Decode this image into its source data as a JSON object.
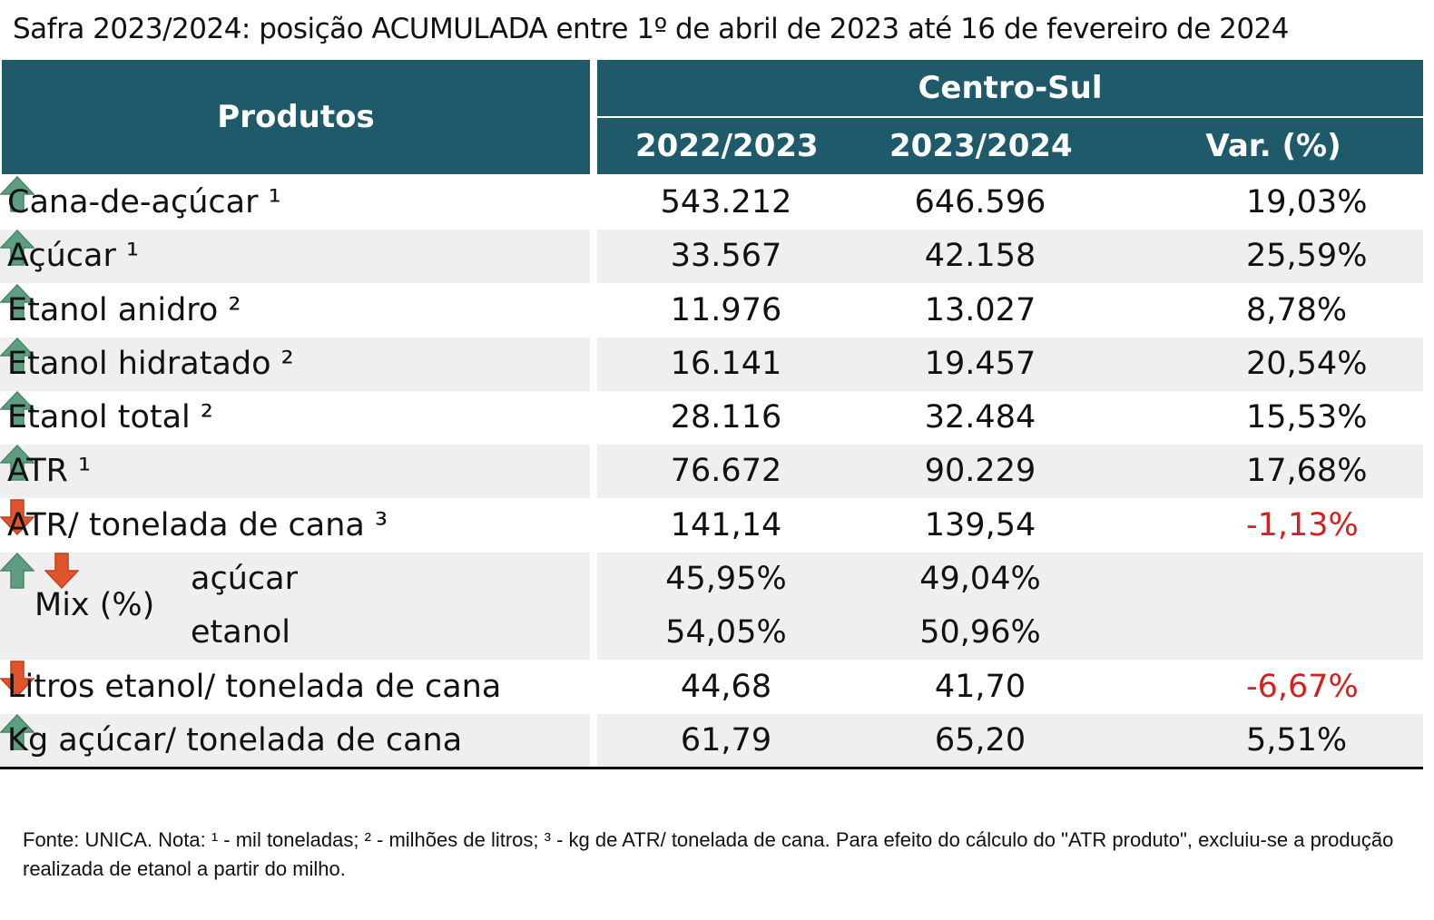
{
  "title": "Safra 2023/2024: posição ACUMULADA entre 1º de abril de 2023 até 16 de fevereiro de 2024",
  "table": {
    "header": {
      "products": "Produtos",
      "region": "Centro-Sul",
      "columns": [
        "2022/2023",
        "2023/2024",
        "Var. (%)"
      ]
    },
    "rows": [
      [
        "Cana-de-açúcar ¹",
        "543.212",
        "646.596",
        "19,03%"
      ],
      [
        "Açúcar ¹",
        "33.567",
        "42.158",
        "25,59%"
      ],
      [
        "Etanol anidro ²",
        "11.976",
        "13.027",
        "8,78%"
      ],
      [
        "Etanol hidratado ²",
        "16.141",
        "19.457",
        "20,54%"
      ],
      [
        "Etanol total ²",
        "28.116",
        "32.484",
        "15,53%"
      ],
      [
        "ATR ¹",
        "76.672",
        "90.229",
        "17,68%"
      ],
      [
        "ATR/ tonelada de cana ³",
        "141,14",
        "139,54",
        "-1,13%"
      ]
    ],
    "mix": {
      "label": "Mix (%)",
      "rows": [
        [
          "açúcar",
          "45,95%",
          "49,04%"
        ],
        [
          "etanol",
          "54,05%",
          "50,96%"
        ]
      ]
    },
    "rows_end": [
      [
        "Litros etanol/ tonelada de cana",
        "44,68",
        "41,70",
        "-6,67%"
      ],
      [
        "Kg açúcar/ tonelada de cana",
        "61,79",
        "65,20",
        "5,51%"
      ]
    ]
  },
  "footnote": "Fonte: UNICA. Nota: ¹ - mil toneladas; ² - milhões de litros; ³ - kg de ATR/ tonelada de cana. Para efeito do cálculo do \"ATR produto\", excluiu-se a produção realizada de etanol a partir do milho."
}
